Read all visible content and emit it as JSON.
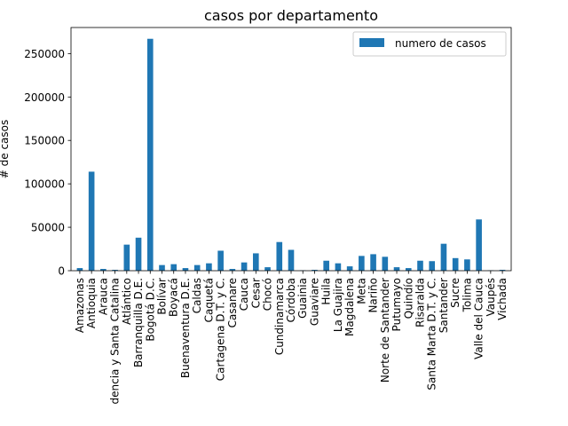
{
  "chart_data": {
    "type": "bar",
    "title": "casos por departamento",
    "xlabel": "",
    "ylabel": "# de casos",
    "ylim": [
      0,
      280000
    ],
    "yticks": [
      0,
      50000,
      100000,
      150000,
      200000,
      250000
    ],
    "grid": false,
    "legend": "top-right",
    "bar_color": "#1f77b4",
    "categories": [
      "Amazonas",
      "Antioquia",
      "Arauca",
      "dencia y Santa Catalina",
      "Atlántico",
      "Barranquilla D.E.",
      "Bogotá D.C.",
      "Bolívar",
      "Boyacá",
      "Buenaventura D.E.",
      "Caldas",
      "Caquetá",
      "Cartagena D.T. y C.",
      "Casanare",
      "Cauca",
      "Cesar",
      "Chocó",
      "Cundinamarca",
      "Córdoba",
      "Guainia",
      "Guaviare",
      "Huila",
      "La Guajira",
      "Magdalena",
      "Meta",
      "Nariño",
      "Norte de Santander",
      "Putumayo",
      "Quindío",
      "Risaralda",
      "Santa Marta D.T. y C.",
      "Santander",
      "Sucre",
      "Tolima",
      "Valle del Cauca",
      "Vaupés",
      "Vichada"
    ],
    "series": [
      {
        "name": "numero de casos",
        "values": [
          3000,
          114000,
          2000,
          1000,
          30000,
          38000,
          267000,
          6500,
          7500,
          3000,
          6500,
          8500,
          23000,
          2000,
          9500,
          20000,
          4000,
          33000,
          24000,
          500,
          1000,
          11500,
          8500,
          5000,
          17000,
          19000,
          16000,
          4000,
          3000,
          11500,
          11000,
          31000,
          14500,
          13000,
          59000,
          500,
          1000
        ]
      }
    ]
  }
}
